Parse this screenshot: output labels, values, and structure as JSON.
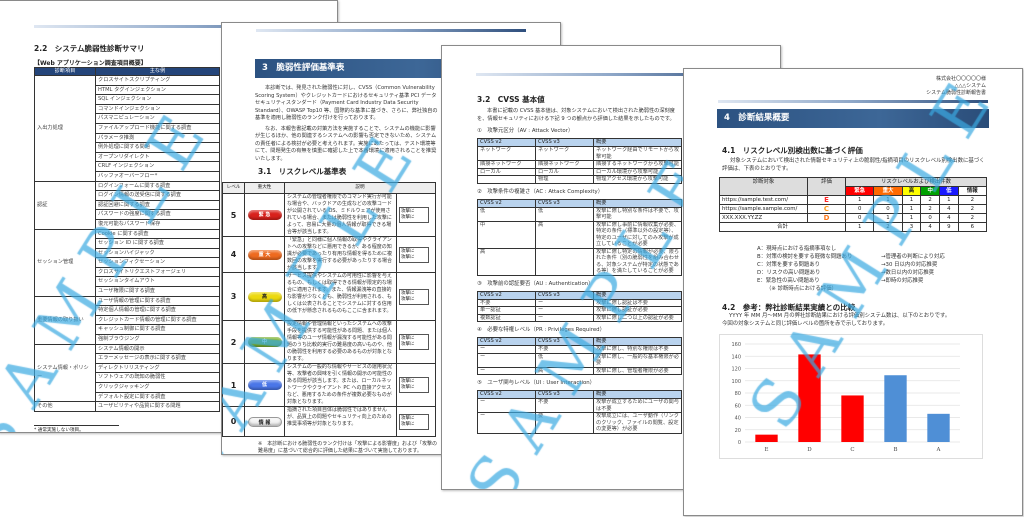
{
  "watermark": "SAMPLE",
  "header": {
    "client": "株式会社〇〇〇〇〇様",
    "system": "△△△システム",
    "doc": "システム脆弱性診断報告書"
  },
  "page1": {
    "section": "2.2　システム脆弱性診断サマリ",
    "table_caption": "【Web アプリケーション調査項目概要】",
    "columns": [
      "診断項目",
      "主な例"
    ],
    "groups": [
      {
        "name": "入出力処理",
        "items": [
          "クロスサイトスクリプティング",
          "HTML タグインジェクション",
          "SQL インジェクション",
          "コマンドインジェクション",
          "パスマニピュレーション",
          "ファイルアップロード機能に関する調査",
          "パラメータ推測",
          "例外処理に関する問題",
          "オープンリダイレクト",
          "CRLF インジェクション",
          "バッファオーバーフロー*"
        ]
      },
      {
        "name": "認証",
        "items": [
          "ログインフォームに関する調査",
          "ログイン情報の送受信に関する調査",
          "認証回避に関する調査",
          "パスワードの強度に関する調査",
          "復元可能なパスワード保存"
        ]
      },
      {
        "name": "セッション管理",
        "items": [
          "Cookie に関する調査",
          "セッション ID に関する調査",
          "セッションハイジャック",
          "セッションフィクセーション",
          "クロスサイトリクエストフォージェリ",
          "セッションタイムアウト",
          "ユーザ権限に関する調査"
        ]
      },
      {
        "name": "重要情報の取り扱い",
        "items": [
          "ユーザ情報の管理に関する調査",
          "特定個人情報の管理に関する調査",
          "クレジットカード情報の管理に関する調査",
          "キャッシュ制御に関する調査",
          "強制ブラウジング"
        ]
      },
      {
        "name": "システム情報・ポリシー",
        "items": [
          "システム情報の開示",
          "エラーメッセージの表示に関する調査",
          "ディレクトリリスティング",
          "ソフトウェアの既知の脆弱性",
          "クリックジャッキング",
          "デフォルト設定に関する調査"
        ]
      },
      {
        "name": "その他",
        "items": [
          "ユーザビリティや品質に関する問題"
        ]
      }
    ],
    "footnote": "* 通常実施しない項目。"
  },
  "page2": {
    "banner": "3　脆弱性評価基準表",
    "intro1": "本診断では、発見された脆弱性に対し、CVSS（Common Vulnerability Scoring System）やクレジットカードにおけるセキュリティ基準 PCI データセキュリティスタンダード（Payment Card Industry Data Security Standard）、OWASP Top10 等、国際的な基準に基づき、さらに、弊社独自の基準を適用し脆弱性のランク付けを行っております。",
    "intro2": "なお、本報告書記載の対策方法を実施することで、システムの機能に影響が生じるほか、他の関連するシステムへの影響も否定できないため、システムの責任者による検討が必要と考えられます。実施にあたっては、テスト環境等にて、問題発生の有無を慎重に確認した上で本番環境に適用されることを推奨いたします。",
    "section": "3.1　リスクレベル基準表",
    "columns": [
      "レベル",
      "重大性",
      "説明"
    ],
    "levels": [
      {
        "level": "5",
        "label": "緊 急",
        "color": "#d8211c",
        "desc": "システムの管理者権限でのコマンド実行が可能な場合や、バックドアの生成などの攻撃コードが公開されている OS、ミドルウェアが使用されている場合、または脆弱性を利用した攻撃によって、容易に大量の個人情報が取得できる場合等が該当します。"
      },
      {
        "level": "4",
        "label": "重 大",
        "color": "#ee6a1f",
        "desc": "「緊急」と同様に個人情報の取得やクライアントへの攻撃などに悪用できるが、ある程度の知識が必要であったり有用な情報を得るために複数回の攻撃を実行する必要があったりする場合が該当します。"
      },
      {
        "level": "3",
        "label": "高",
        "color": "#ecd90e",
        "desc": "サービス提供やシステムの可用性に影響を与えるもの、もしくは取得できる情報が限定的な場合に適用されます。また、情報漏洩等の直接的な影響が少なくとも、脆弱性が利用される、もしくは公表されることでシステムに対する信用の低下が懸念されるものもここに含まれます。"
      },
      {
        "level": "2",
        "label": "中",
        "color": "#7cb02a",
        "desc": "設定情報や管理情報といったシステムへの攻撃手段を提供する可能性がある問題、または個人情報等のユーザ情報が漏洩する可能性がある問題のうち比較的実行の難易度の高いものや、他の脆弱性を利用する必要のあるものが対象となります。"
      },
      {
        "level": "1",
        "label": "低",
        "color": "#4a76e8",
        "desc": "システムの一般的な情報やサービスの運用状況等、攻撃者の興味を引く情報の開示の可能性のある問題が該当します。または、ローカルネットワークやクライアント PC への直接アクセスなど、悪用するための条件が複数必要なものが対象となります。"
      },
      {
        "level": "0",
        "label": "情 報",
        "color": "#f2f2f2",
        "desc": "指摘された項目自体は脆弱性ではありませんが、品質上の問題やセキュリティ向上のための推奨事項等が対象となります。"
      }
    ],
    "mini_label": "攻撃に",
    "note": "※　本診断における脆弱性のランク付けは「攻撃による影響度」および「攻撃の難易度」に基づいて総合的に評価した結果に基づいて実施しております。"
  },
  "page3": {
    "section": "3.2　CVSS 基本値",
    "intro": "本書に記載の CVSS 基本値は、対象システムにおいて検出された脆弱性の深刻度を、情報セキュリティにおける下記 9 つの観点から評価した結果を示したものです。",
    "columns": [
      "CVSS v2",
      "CVSS v3",
      "概要"
    ],
    "tables": [
      {
        "title": "①　攻撃元区分（AV : Attack Vector）",
        "rows": [
          [
            "ネットワーク",
            "ネットワーク",
            "ネットワーク経由でリモートから攻撃可能"
          ],
          [
            "隣接ネットワーク",
            "隣接ネットワーク",
            "隣接するネットワークから攻撃可能"
          ],
          [
            "ローカル",
            "ローカル",
            "ローカル環境から攻撃可能"
          ],
          [
            "",
            "物理",
            "物理アクセス環境から攻撃可能"
          ]
        ]
      },
      {
        "title": "②　攻撃条件の複雑さ（AC : Attack Complexity）",
        "rows": [
          [
            "低",
            "低",
            "攻撃に際し特別な条件は不要で、攻撃可能"
          ],
          [
            "中",
            "高",
            "攻撃に際し事前に情報収集が必要、特定の条件（標準以外の設定等）、特定のユーザに対してのみ攻撃が成立していることが必要"
          ],
          [
            "高",
            "",
            "攻撃に際し特定の情報が必要、限られた条件（別の脆弱性を組み合わせる、対象システムが特定の状態である等）を満たしていることが必要"
          ]
        ]
      },
      {
        "title": "③　攻撃前の認証要否（AU : Authentication）",
        "rows": [
          [
            "不要",
            "ー",
            "攻撃に際し認証は不要"
          ],
          [
            "単一認証",
            "ー",
            "攻撃に際し認証が必要"
          ],
          [
            "複数認証",
            "ー",
            "攻撃に際し二つ以上の認証が必要"
          ]
        ]
      },
      {
        "title": "④　必要な特権レベル（PR : Privileges Required）",
        "rows": [
          [
            "ー",
            "不要",
            "攻撃に際し、特別な権限は不要"
          ],
          [
            "ー",
            "低",
            "攻撃に際し、一般的な基本権限が必要"
          ],
          [
            "ー",
            "高",
            "攻撃に際し、管理者権限が必要"
          ]
        ]
      },
      {
        "title": "⑤　ユーザ関与レベル（UI : User Interaction）",
        "rows": [
          [
            "ー",
            "不要",
            "攻撃が成立するためにユーザの関与は不要"
          ],
          [
            "ー",
            "要",
            "攻撃成立には、ユーザ動作（リンクのクリック、ファイルの閲覧、設定の変更等）が必要"
          ]
        ]
      }
    ]
  },
  "page4": {
    "banner": "4　診断結果概要",
    "section1": "4.1　リスクレベル別検出数に基づく評価",
    "intro1": "対象システムにおいて検出された情報セキュリティ上の脆弱性/指摘項目のリスクレベル別検出数に基づく評価は、下表のとおりです。",
    "table": {
      "col_target": "診断対象",
      "col_grade": "評価",
      "col_levels": "リスクレベルおよび検出件数",
      "levels": [
        {
          "label": "緊急",
          "color": "#ff0000"
        },
        {
          "label": "重大",
          "color": "#ff6a00"
        },
        {
          "label": "高",
          "color": "#ffff00"
        },
        {
          "label": "中",
          "color": "#00a000"
        },
        {
          "label": "低",
          "color": "#1a1aff"
        },
        {
          "label": "情報",
          "color": "#ffffff"
        }
      ],
      "rows": [
        {
          "target": "https://sample.test.com/",
          "grade": "E",
          "grade_color": "#ff2a2a",
          "counts": [
            1,
            1,
            1,
            2,
            1,
            2
          ]
        },
        {
          "target": "https://sample.sample.com/",
          "grade": "C",
          "grade_color": "#ff9a1a",
          "counts": [
            0,
            0,
            1,
            2,
            4,
            2
          ]
        },
        {
          "target": "XXX.XXX.YY.ZZ",
          "grade": "D",
          "grade_color": "#ff7a1a",
          "counts": [
            0,
            1,
            1,
            0,
            4,
            2
          ]
        }
      ],
      "total_label": "合計",
      "totals": [
        1,
        2,
        3,
        4,
        9,
        6
      ]
    },
    "legend": [
      {
        "grade": "A：現時点における指摘事項なし",
        "action": ""
      },
      {
        "grade": "B：対策の検討を要する軽微な問題あり",
        "action": "→管理者の判断により対応"
      },
      {
        "grade": "C：対策を要する問題あり",
        "action": "→30 日以内の対応推奨"
      },
      {
        "grade": "D：リスクの高い問題あり",
        "action": "→数日以内の対応推奨"
      },
      {
        "grade": "E：緊急性の高い問題あり",
        "action": "→即時の対応推奨"
      }
    ],
    "legend_note": "（※ 診断時点における評価）",
    "section2": "4.2　参考：弊社診断結果実績との比較",
    "intro2a": "YYYY 年 MM 月～MM 月の弊社診断結果における評価別システム数は、以下のとおりです。",
    "intro2b": "今回の対象システムと同じ評価レベルの箇所を赤で示しております。"
  },
  "chart_data": {
    "type": "bar",
    "categories": [
      "E",
      "D",
      "C",
      "B",
      "A"
    ],
    "values": [
      12,
      143,
      76,
      109,
      46
    ],
    "colors": [
      "#ff0000",
      "#ff0000",
      "#ff0000",
      "#4f8fd6",
      "#4f8fd6"
    ],
    "ylim": [
      0,
      160
    ],
    "yticks": [
      0,
      20,
      40,
      60,
      80,
      100,
      120,
      140,
      160
    ],
    "grid": true
  }
}
